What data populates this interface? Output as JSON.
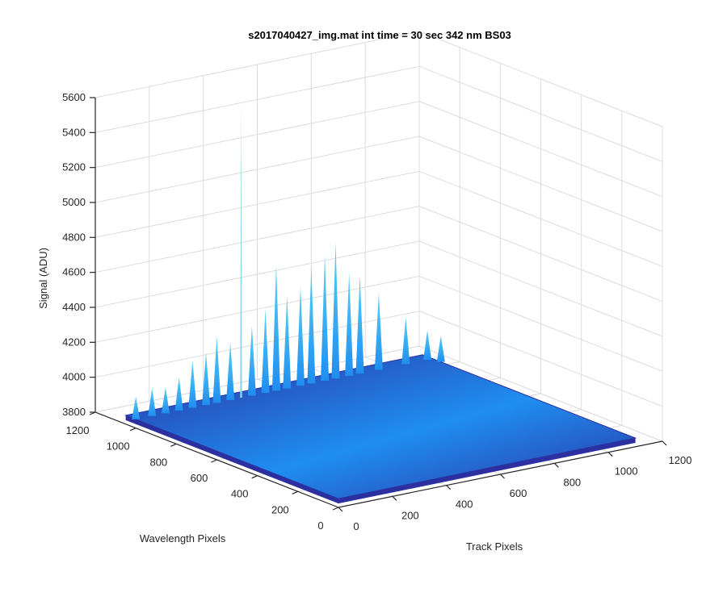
{
  "colors": {
    "surface_low": "#2b2fa0",
    "surface_high": "#1f8ef0",
    "spike_top": "#5ad1f5",
    "grid": "#dcdcdc",
    "axis": "#262626"
  },
  "chart_data": {
    "type": "surface3d",
    "title": "s2017040427_img.mat int time = 30 sec  342 nm BS03",
    "xlabel": "Track Pixels",
    "ylabel": "Wavelength Pixels",
    "zlabel": "Signal (ADU)",
    "xlim": [
      0,
      1200
    ],
    "ylim": [
      0,
      1200
    ],
    "zlim": [
      3800,
      5600
    ],
    "xticks": [
      "0",
      "200",
      "400",
      "600",
      "800",
      "1000",
      "1200"
    ],
    "yticks": [
      "0",
      "200",
      "400",
      "600",
      "800",
      "1000",
      "1200"
    ],
    "zticks": [
      "3800",
      "4000",
      "4200",
      "4400",
      "4600",
      "4800",
      "5000",
      "5200",
      "5400",
      "5600"
    ],
    "grid": true,
    "surface_extent": {
      "track": [
        0,
        1100
      ],
      "wavelength": [
        0,
        1050
      ]
    },
    "baseline_signal": 3850,
    "spikes": [
      {
        "track": 0,
        "wavelength": 1000,
        "signal": 3980
      },
      {
        "track": 60,
        "wavelength": 1000,
        "signal": 4010
      },
      {
        "track": 110,
        "wavelength": 1000,
        "signal": 4000
      },
      {
        "track": 160,
        "wavelength": 1000,
        "signal": 4040
      },
      {
        "track": 210,
        "wavelength": 1000,
        "signal": 4120
      },
      {
        "track": 260,
        "wavelength": 1000,
        "signal": 4150
      },
      {
        "track": 300,
        "wavelength": 1000,
        "signal": 4230
      },
      {
        "track": 350,
        "wavelength": 1000,
        "signal": 4180
      },
      {
        "track": 390,
        "wavelength": 1000,
        "signal": 5550
      },
      {
        "track": 430,
        "wavelength": 1000,
        "signal": 4250
      },
      {
        "track": 480,
        "wavelength": 1000,
        "signal": 4330
      },
      {
        "track": 520,
        "wavelength": 1000,
        "signal": 4570
      },
      {
        "track": 560,
        "wavelength": 1000,
        "signal": 4380
      },
      {
        "track": 610,
        "wavelength": 1000,
        "signal": 4420
      },
      {
        "track": 650,
        "wavelength": 1000,
        "signal": 4520
      },
      {
        "track": 700,
        "wavelength": 1000,
        "signal": 4570
      },
      {
        "track": 740,
        "wavelength": 1000,
        "signal": 4630
      },
      {
        "track": 790,
        "wavelength": 1000,
        "signal": 4440
      },
      {
        "track": 830,
        "wavelength": 1000,
        "signal": 4410
      },
      {
        "track": 900,
        "wavelength": 1000,
        "signal": 4290
      },
      {
        "track": 1000,
        "wavelength": 1000,
        "signal": 4120
      },
      {
        "track": 1080,
        "wavelength": 1000,
        "signal": 4020
      },
      {
        "track": 1100,
        "wavelength": 960,
        "signal": 4000
      }
    ]
  }
}
